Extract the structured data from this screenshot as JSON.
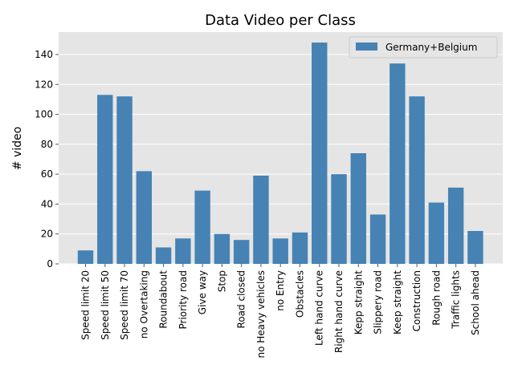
{
  "chart_data": {
    "type": "bar",
    "title": "Data Video per Class",
    "xlabel": "",
    "ylabel": "# video",
    "ylim": [
      0,
      155
    ],
    "yticks": [
      0,
      20,
      40,
      60,
      80,
      100,
      120,
      140
    ],
    "grid": true,
    "legend_position": "top-right",
    "categories": [
      "Speed limit 20",
      "Speed limit 50",
      "Speed limit 70",
      "no Overtaking",
      "Roundabout",
      "Priority road",
      "Give way",
      "Stop",
      "Road closed",
      "no Heavy vehicles",
      "no Entry",
      "Obstacles",
      "Left hand curve",
      "Right hand curve",
      "Kepp straight",
      "Slippery road",
      "Keep straight",
      "Construction",
      "Rough road",
      "Traffic lights",
      "School ahead"
    ],
    "series": [
      {
        "name": "Germany+Belgium",
        "color": "#4682b4",
        "values": [
          9,
          113,
          112,
          62,
          11,
          17,
          49,
          20,
          16,
          59,
          17,
          21,
          148,
          60,
          74,
          33,
          134,
          112,
          41,
          51,
          22
        ]
      }
    ],
    "colors": {
      "plot_background": "#e5e5e5",
      "grid": "#ffffff"
    }
  }
}
